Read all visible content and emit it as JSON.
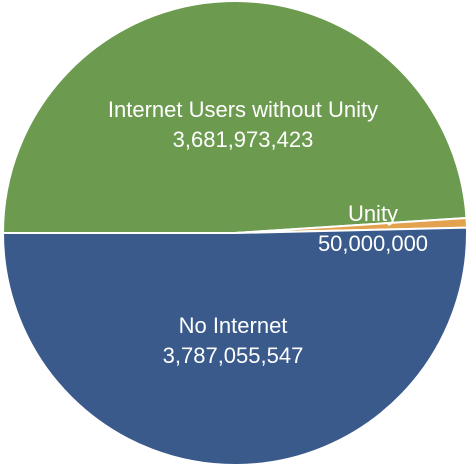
{
  "chart_data": {
    "type": "pie",
    "title": "",
    "slices": [
      {
        "label": "Internet Users without Unity",
        "value": 3681973423,
        "display_value": "3,681,973,423",
        "color": "#6c9a4f"
      },
      {
        "label": "Unity",
        "value": 50000000,
        "display_value": "50,000,000",
        "color": "#e3a24e"
      },
      {
        "label": "No Internet",
        "value": 3787055547,
        "display_value": "3,787,055,547",
        "color": "#3a5a8c"
      }
    ],
    "start_angle_deg": 180,
    "direction": "clockwise",
    "slice_border_color": "#ffffff",
    "legend": "none"
  }
}
